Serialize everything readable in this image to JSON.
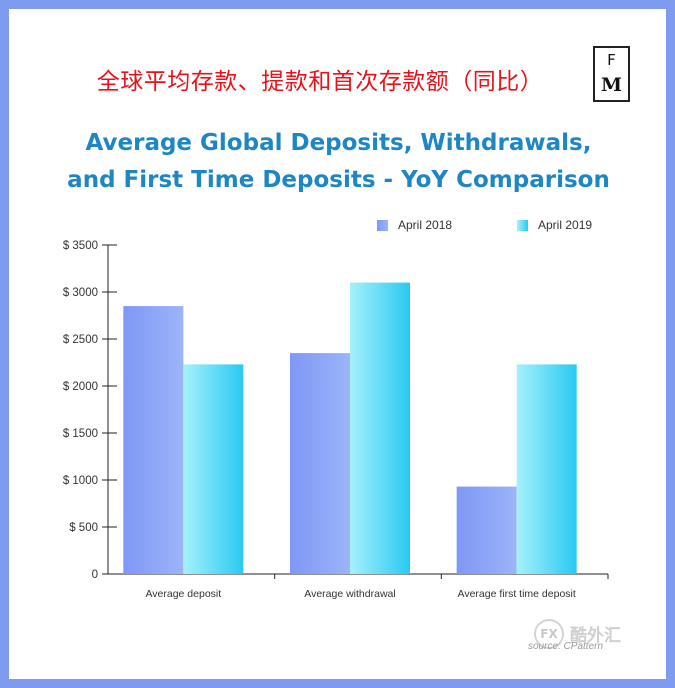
{
  "header": {
    "cn_title": "全球平均存款、提款和首次存款额（同比）",
    "en_title_line1": "Average Global Deposits, Withdrawals,",
    "en_title_line2": "and First Time Deposits - YoY Comparison",
    "logo_top": "F",
    "logo_bottom": "M"
  },
  "watermark": {
    "badge": "FX",
    "cn": "酷外汇",
    "source": "source: CPattern"
  },
  "colors": {
    "frame": "#7f9bf0",
    "title_cn": "#e8121b",
    "title_en": "#1d87c4",
    "series_2018": "#8aa3f7",
    "series_2019": "#7ee3f7"
  },
  "chart_data": {
    "type": "bar",
    "title": "Average Global Deposits, Withdrawals, and First Time Deposits - YoY Comparison",
    "categories": [
      "Average deposit",
      "Average withdrawal",
      "Average first time deposit"
    ],
    "series": [
      {
        "name": "April 2018",
        "values": [
          2850,
          2350,
          930
        ],
        "color": "#8aa3f7"
      },
      {
        "name": "April 2019",
        "values": [
          2230,
          3100,
          2230
        ],
        "color": "#7ee3f7"
      }
    ],
    "ylim": [
      0,
      3500
    ],
    "yticks": [
      0,
      500,
      1000,
      1500,
      2000,
      2500,
      3000,
      3500
    ],
    "ytick_labels": [
      "0",
      "$ 500",
      "$ 1000",
      "$ 1500",
      "$ 2000",
      "$ 2500",
      "$ 3000",
      "$ 3500"
    ],
    "legend_position": "top-right",
    "grid": false
  }
}
